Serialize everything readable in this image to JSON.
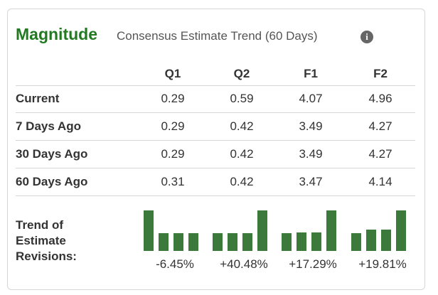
{
  "header": {
    "title": "Magnitude",
    "subtitle": "Consensus Estimate Trend (60 Days)"
  },
  "table": {
    "columns": [
      "Q1",
      "Q2",
      "F1",
      "F2"
    ],
    "rows": [
      {
        "label": "Current",
        "values": [
          0.29,
          0.59,
          4.07,
          4.96
        ]
      },
      {
        "label": "7 Days Ago",
        "values": [
          0.29,
          0.42,
          3.49,
          4.27
        ]
      },
      {
        "label": "30 Days Ago",
        "values": [
          0.29,
          0.42,
          3.49,
          4.27
        ]
      },
      {
        "label": "60 Days Ago",
        "values": [
          0.31,
          0.42,
          3.47,
          4.14
        ]
      }
    ]
  },
  "trend": {
    "label": "Trend of Estimate Revisions:",
    "changes": [
      "-6.45%",
      "+40.48%",
      "+17.29%",
      "+19.81%"
    ]
  }
}
